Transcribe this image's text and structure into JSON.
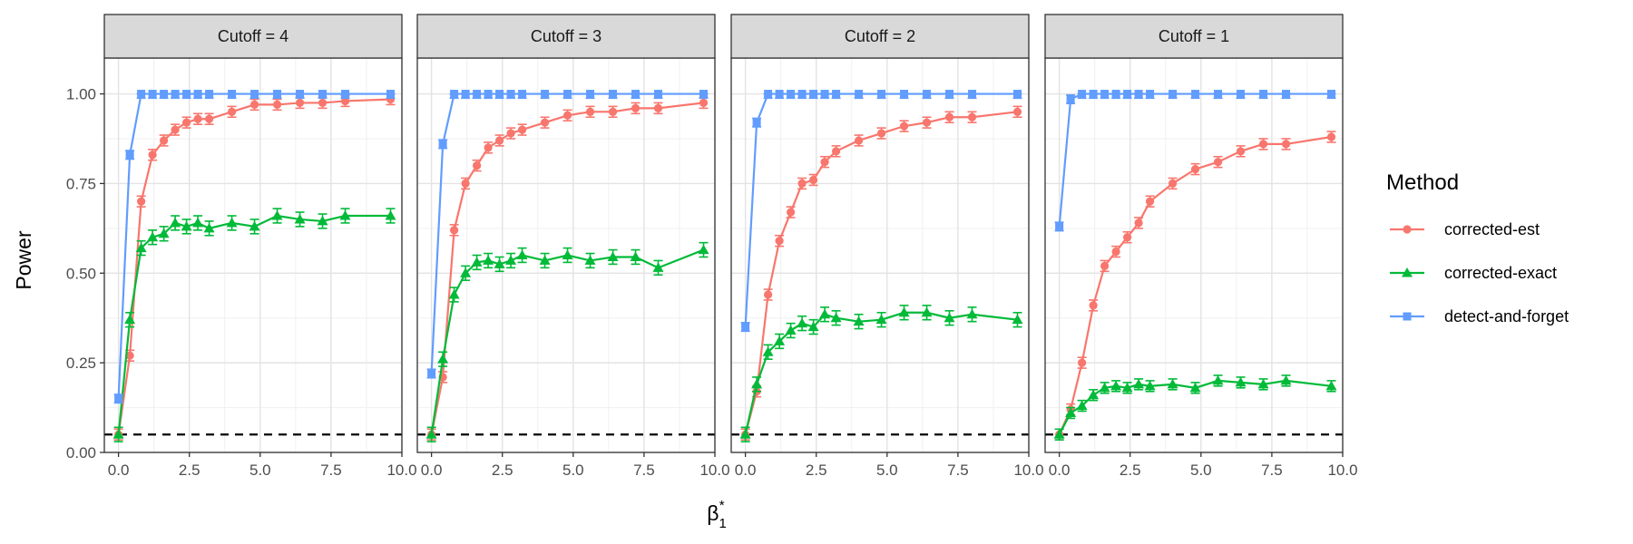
{
  "chart_data": {
    "type": "line",
    "ylabel": "Power",
    "xlabel": "β",
    "xlabel_sub": "1",
    "xlabel_sup": "*",
    "xlim": [
      -0.5,
      10
    ],
    "ylim": [
      0,
      1.1
    ],
    "x_ticks": [
      0,
      2.5,
      5,
      7.5,
      10
    ],
    "x_tick_labels": [
      "0.0",
      "2.5",
      "5.0",
      "7.5",
      "10.0"
    ],
    "y_ticks": [
      0,
      0.25,
      0.5,
      0.75,
      1.0
    ],
    "y_tick_labels": [
      "0.00",
      "0.25",
      "0.50",
      "0.75",
      "1.00"
    ],
    "reference_line": {
      "y": 0.05,
      "style": "dashed",
      "color": "#000000"
    },
    "grid": true,
    "legend": {
      "title": "Method",
      "placement": "right",
      "entries": [
        {
          "label": "corrected-est",
          "color": "#F8766D",
          "marker": "circle"
        },
        {
          "label": "corrected-exact",
          "color": "#00BA38",
          "marker": "triangle"
        },
        {
          "label": "detect-and-forget",
          "color": "#619CFF",
          "marker": "square"
        }
      ]
    },
    "x": [
      0,
      0.4,
      0.8,
      1.2,
      1.6,
      2.0,
      2.4,
      2.8,
      3.2,
      4.0,
      4.8,
      5.6,
      6.4,
      7.2,
      8.0,
      9.6
    ],
    "panels": [
      {
        "strip": "Cutoff = 4",
        "series": [
          {
            "name": "corrected-est",
            "color": "#F8766D",
            "marker": "circle",
            "values": [
              0.05,
              0.27,
              0.7,
              0.83,
              0.87,
              0.9,
              0.92,
              0.93,
              0.93,
              0.95,
              0.97,
              0.97,
              0.975,
              0.975,
              0.98,
              0.985
            ],
            "error": 0.015
          },
          {
            "name": "corrected-exact",
            "color": "#00BA38",
            "marker": "triangle",
            "values": [
              0.05,
              0.37,
              0.57,
              0.6,
              0.61,
              0.64,
              0.63,
              0.64,
              0.625,
              0.64,
              0.63,
              0.66,
              0.65,
              0.645,
              0.66,
              0.66
            ],
            "error": 0.02
          },
          {
            "name": "detect-and-forget",
            "color": "#619CFF",
            "marker": "square",
            "values": [
              0.15,
              0.83,
              1.0,
              1.0,
              1.0,
              1.0,
              1.0,
              1.0,
              1.0,
              1.0,
              1.0,
              1.0,
              1.0,
              1.0,
              1.0,
              1.0
            ],
            "error": 0.012
          }
        ]
      },
      {
        "strip": "Cutoff = 3",
        "series": [
          {
            "name": "corrected-est",
            "color": "#F8766D",
            "marker": "circle",
            "values": [
              0.05,
              0.21,
              0.62,
              0.75,
              0.8,
              0.85,
              0.87,
              0.89,
              0.9,
              0.92,
              0.94,
              0.95,
              0.95,
              0.96,
              0.96,
              0.975
            ],
            "error": 0.015
          },
          {
            "name": "corrected-exact",
            "color": "#00BA38",
            "marker": "triangle",
            "values": [
              0.05,
              0.26,
              0.44,
              0.5,
              0.53,
              0.535,
              0.525,
              0.535,
              0.55,
              0.535,
              0.55,
              0.535,
              0.545,
              0.545,
              0.515,
              0.565
            ],
            "error": 0.02
          },
          {
            "name": "detect-and-forget",
            "color": "#619CFF",
            "marker": "square",
            "values": [
              0.22,
              0.86,
              1.0,
              1.0,
              1.0,
              1.0,
              1.0,
              1.0,
              1.0,
              1.0,
              1.0,
              1.0,
              1.0,
              1.0,
              1.0,
              1.0
            ],
            "error": 0.012
          }
        ]
      },
      {
        "strip": "Cutoff = 2",
        "series": [
          {
            "name": "corrected-est",
            "color": "#F8766D",
            "marker": "circle",
            "values": [
              0.05,
              0.17,
              0.44,
              0.59,
              0.67,
              0.75,
              0.76,
              0.81,
              0.84,
              0.87,
              0.89,
              0.91,
              0.92,
              0.935,
              0.935,
              0.95
            ],
            "error": 0.015
          },
          {
            "name": "corrected-exact",
            "color": "#00BA38",
            "marker": "triangle",
            "values": [
              0.05,
              0.19,
              0.28,
              0.31,
              0.34,
              0.36,
              0.35,
              0.385,
              0.375,
              0.365,
              0.37,
              0.39,
              0.39,
              0.375,
              0.385,
              0.37
            ],
            "error": 0.02
          },
          {
            "name": "detect-and-forget",
            "color": "#619CFF",
            "marker": "square",
            "values": [
              0.35,
              0.92,
              1.0,
              1.0,
              1.0,
              1.0,
              1.0,
              1.0,
              1.0,
              1.0,
              1.0,
              1.0,
              1.0,
              1.0,
              1.0,
              1.0
            ],
            "error": 0.012
          }
        ]
      },
      {
        "strip": "Cutoff = 1",
        "series": [
          {
            "name": "corrected-est",
            "color": "#F8766D",
            "marker": "circle",
            "values": [
              0.05,
              0.12,
              0.25,
              0.41,
              0.52,
              0.56,
              0.6,
              0.64,
              0.7,
              0.75,
              0.79,
              0.81,
              0.84,
              0.86,
              0.86,
              0.88
            ],
            "error": 0.015
          },
          {
            "name": "corrected-exact",
            "color": "#00BA38",
            "marker": "triangle",
            "values": [
              0.05,
              0.11,
              0.13,
              0.16,
              0.18,
              0.185,
              0.18,
              0.19,
              0.185,
              0.19,
              0.18,
              0.2,
              0.195,
              0.19,
              0.2,
              0.185
            ],
            "error": 0.015
          },
          {
            "name": "detect-and-forget",
            "color": "#619CFF",
            "marker": "square",
            "values": [
              0.63,
              0.985,
              1.0,
              1.0,
              1.0,
              1.0,
              1.0,
              1.0,
              1.0,
              1.0,
              1.0,
              1.0,
              1.0,
              1.0,
              1.0,
              1.0
            ],
            "error": 0.012
          }
        ]
      }
    ]
  }
}
